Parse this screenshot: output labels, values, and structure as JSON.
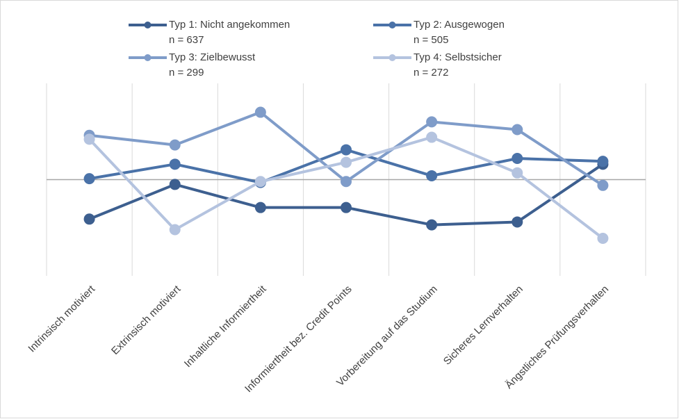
{
  "chart_data": {
    "type": "line",
    "categories": [
      "Intrinsisch motiviert",
      "Extrinsisch motiviert",
      "Inhaltliche Informiertheit",
      "Informiertheit bez. Credit Points",
      "Vorbereitung auf das Studium",
      "Sicheres Lernverhalten",
      "Ängstliches Prüfungsverhalten"
    ],
    "series": [
      {
        "name": "Typ 1: Nicht angekommen",
        "n": "n = 637",
        "color": "#3d5f8f",
        "values": [
          -0.41,
          -0.05,
          -0.29,
          -0.29,
          -0.47,
          -0.44,
          0.16
        ]
      },
      {
        "name": "Typ 2: Ausgewogen",
        "n": "n = 505",
        "color": "#4a72a8",
        "values": [
          0.01,
          0.16,
          -0.03,
          0.31,
          0.04,
          0.22,
          0.19
        ]
      },
      {
        "name": "Typ 3: Zielbewusst",
        "n": "n = 299",
        "color": "#7f9cc9",
        "values": [
          0.46,
          0.36,
          0.7,
          -0.02,
          0.6,
          0.52,
          -0.06
        ]
      },
      {
        "name": "Typ 4: Selbstsicher",
        "n": "n = 272",
        "color": "#b4c3df",
        "values": [
          0.42,
          -0.52,
          -0.02,
          0.18,
          0.44,
          0.07,
          -0.61
        ]
      }
    ],
    "ylim": [
      -1,
      1
    ],
    "legend": "top"
  }
}
